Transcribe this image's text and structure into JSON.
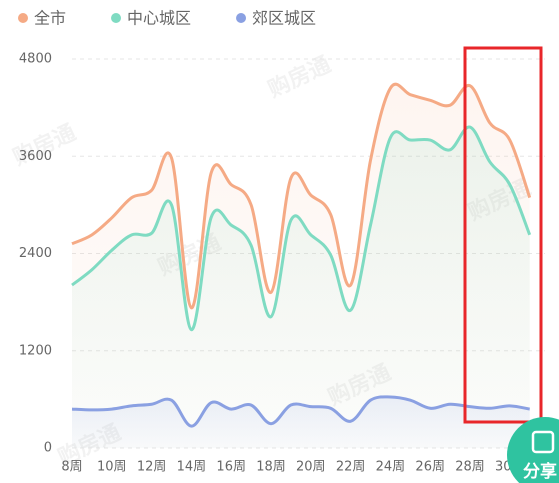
{
  "chart_data": {
    "type": "line",
    "categories": [
      "8周",
      null,
      "10周",
      null,
      "12周",
      null,
      "14周",
      null,
      "16周",
      null,
      "18周",
      null,
      "20周",
      null,
      "22周",
      null,
      "24周",
      null,
      "26周",
      null,
      "28周",
      null,
      "30周",
      null
    ],
    "series": [
      {
        "name": "全市",
        "color": "#f5aa85",
        "values": [
          2520,
          2630,
          2840,
          3090,
          3180,
          3580,
          1730,
          3400,
          3250,
          3000,
          1920,
          3330,
          3120,
          2880,
          2010,
          3550,
          4440,
          4360,
          4290,
          4230,
          4470,
          4010,
          3800,
          3090
        ]
      },
      {
        "name": "中心城区",
        "color": "#7fdbc2",
        "values": [
          2010,
          2200,
          2440,
          2630,
          2650,
          3000,
          1460,
          2850,
          2750,
          2500,
          1620,
          2810,
          2630,
          2380,
          1700,
          2750,
          3830,
          3800,
          3800,
          3680,
          3960,
          3530,
          3250,
          2630
        ]
      },
      {
        "name": "郊区城区",
        "color": "#8aa0e2",
        "values": [
          480,
          470,
          480,
          520,
          540,
          590,
          270,
          560,
          480,
          530,
          300,
          530,
          510,
          490,
          330,
          590,
          630,
          590,
          490,
          540,
          510,
          490,
          520,
          480
        ]
      }
    ],
    "ylim": [
      0,
      4800
    ],
    "yticks": [
      0,
      1200,
      2400,
      3600,
      4800
    ],
    "grid": true,
    "watermark": "购房通",
    "share_label": "分享"
  }
}
